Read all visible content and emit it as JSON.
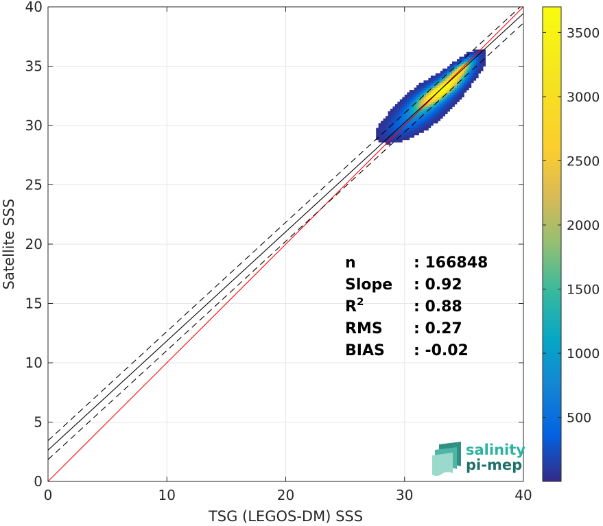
{
  "chart_data": {
    "type": "heatmap",
    "xlabel": "TSG (LEGOS-DM) SSS",
    "ylabel": "Satellite SSS",
    "xlim": [
      0,
      40
    ],
    "ylim": [
      0,
      40
    ],
    "x_ticks": [
      "0",
      "10",
      "20",
      "30",
      "40"
    ],
    "y_ticks": [
      "0",
      "5",
      "10",
      "15",
      "20",
      "25",
      "30",
      "35",
      "40"
    ],
    "grid": true,
    "colorbar": {
      "colormap": "parula",
      "range": [
        1,
        3700
      ],
      "ticks": [
        "500",
        "1000",
        "1500",
        "2000",
        "2500",
        "3000",
        "3500"
      ],
      "tick_values": [
        500,
        1000,
        1500,
        2000,
        2500,
        3000,
        3500
      ]
    },
    "lines": [
      {
        "kind": "identity",
        "color": "#ff0000",
        "slope": 1,
        "intercept": 0
      },
      {
        "kind": "regression",
        "color": "#000000",
        "style": "solid",
        "slope": 0.92,
        "intercept": 2.64
      },
      {
        "kind": "regression-upper",
        "color": "#000000",
        "style": "dashed",
        "slope": 0.92,
        "intercept": 3.44
      },
      {
        "kind": "regression-lower",
        "color": "#000000",
        "style": "dashed",
        "slope": 0.92,
        "intercept": 1.84
      }
    ],
    "density_clusters": [
      {
        "x": 33.0,
        "y": 32.9,
        "sx": 1.2,
        "sy": 0.9,
        "peak": 3700,
        "rho": 0.85
      },
      {
        "x": 34.6,
        "y": 34.6,
        "sx": 0.7,
        "sy": 0.6,
        "peak": 2600,
        "rho": 0.8
      },
      {
        "x": 31.8,
        "y": 31.8,
        "sx": 1.4,
        "sy": 1.1,
        "peak": 900,
        "rho": 0.7
      },
      {
        "x": 30.0,
        "y": 30.0,
        "sx": 1.3,
        "sy": 0.8,
        "peak": 250,
        "rho": 0.6
      }
    ],
    "stats": [
      {
        "label": "n",
        "sep": ": ",
        "value": "166848"
      },
      {
        "label": "Slope",
        "sep": ": ",
        "value": "0.92"
      },
      {
        "label": "R",
        "sup": "2",
        "sep": ": ",
        "value": "0.88"
      },
      {
        "label": "RMS",
        "sep": ": ",
        "value": "0.27"
      },
      {
        "label": "BIAS",
        "sep": ": ",
        "value": "-0.02"
      }
    ]
  },
  "logo": {
    "line1": "salinity",
    "line2": "pi-mep",
    "color1": "#2bb3a0",
    "color2": "#1f6f6a",
    "icon": "wave-layers-icon"
  }
}
